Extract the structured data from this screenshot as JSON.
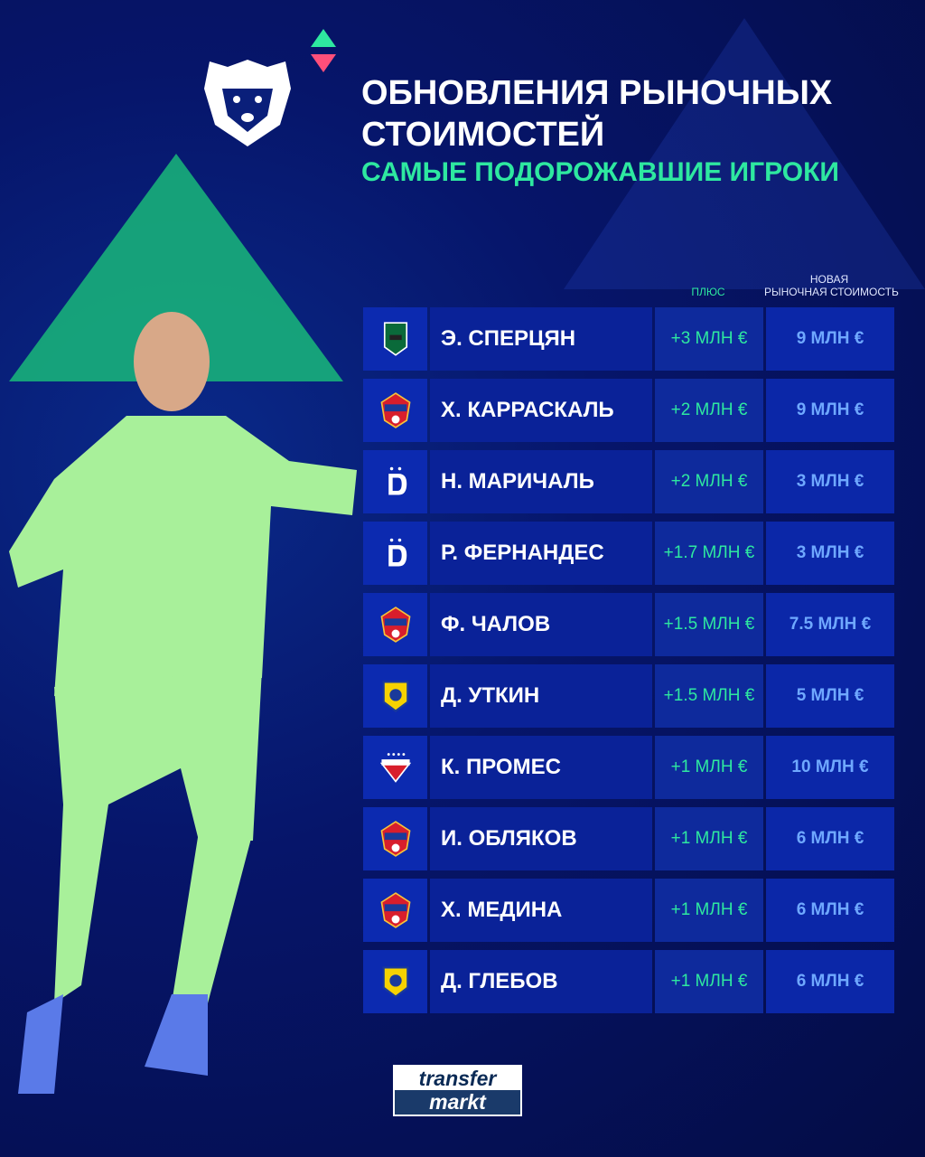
{
  "header": {
    "title_line1": "ОБНОВЛЕНИЯ РЫНОЧНЫХ",
    "title_line2": "СТОИМОСТЕЙ",
    "subtitle": "САМЫЕ ПОДОРОЖАВШИЕ ИГРОКИ"
  },
  "table": {
    "col_plus": "ПЛЮС",
    "col_value_line1": "НОВАЯ",
    "col_value_line2": "РЫНОЧНАЯ СТОИМОСТЬ",
    "rows": [
      {
        "club_icon": "krasnodar-crest",
        "name": "Э. СПЕРЦЯН",
        "plus": "+3 МЛН €",
        "value": "9 МЛН €"
      },
      {
        "club_icon": "cska-crest",
        "name": "Х. КАРРАСКАЛЬ",
        "plus": "+2 МЛН €",
        "value": "9 МЛН €"
      },
      {
        "club_icon": "dynamo-crest",
        "name": "Н. МАРИЧАЛЬ",
        "plus": "+2 МЛН €",
        "value": "3 МЛН €"
      },
      {
        "club_icon": "dynamo-crest",
        "name": "Р. ФЕРНАНДЕС",
        "plus": "+1.7 МЛН €",
        "value": "3 МЛН €"
      },
      {
        "club_icon": "cska-crest",
        "name": "Ф. ЧАЛОВ",
        "plus": "+1.5 МЛН €",
        "value": "7.5 МЛН €"
      },
      {
        "club_icon": "rostov-crest",
        "name": "Д. УТКИН",
        "plus": "+1.5 МЛН €",
        "value": "5 МЛН €"
      },
      {
        "club_icon": "spartak-crest",
        "name": "К. ПРОМЕС",
        "plus": "+1 МЛН €",
        "value": "10 МЛН €"
      },
      {
        "club_icon": "cska-crest",
        "name": "И. ОБЛЯКОВ",
        "plus": "+1 МЛН €",
        "value": "6 МЛН €"
      },
      {
        "club_icon": "cska-crest",
        "name": "Х. МЕДИНА",
        "plus": "+1 МЛН €",
        "value": "6 МЛН €"
      },
      {
        "club_icon": "rostov-crest",
        "name": "Д. ГЛЕБОВ",
        "plus": "+1 МЛН €",
        "value": "6 МЛН €"
      }
    ]
  },
  "footer": {
    "logo_line1": "transfer",
    "logo_line2": "markt"
  },
  "colors": {
    "accent_green": "#2ee8a0",
    "value_blue": "#6fa8ff",
    "background": "#06156a"
  }
}
